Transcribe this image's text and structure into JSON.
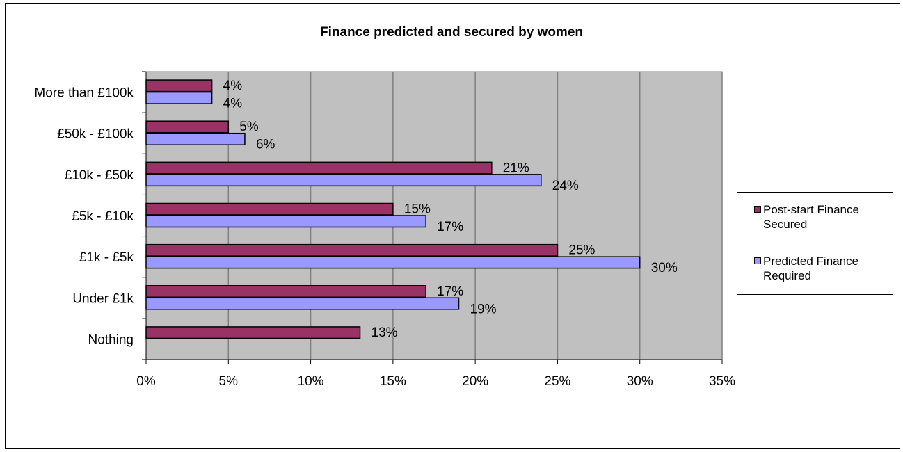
{
  "chart_data": {
    "type": "bar",
    "orientation": "horizontal",
    "title": "Finance predicted and secured by women",
    "categories": [
      "More than £100k",
      "£50k - £100k",
      "£10k - £50k",
      "£5k - £10k",
      "£1k - £5k",
      "Under £1k",
      "Nothing"
    ],
    "series": [
      {
        "name": "Post-start Finance Secured",
        "color": "#993366",
        "values": [
          4,
          5,
          21,
          15,
          25,
          17,
          13
        ],
        "labels": [
          "4%",
          "5%",
          "21%",
          "15%",
          "25%",
          "17%",
          "13%"
        ]
      },
      {
        "name": "Predicted  Finance Required",
        "color": "#9999FF",
        "values": [
          4,
          6,
          24,
          17,
          30,
          19,
          null
        ],
        "labels": [
          "4%",
          "6%",
          "24%",
          "17%",
          "30%",
          "19%",
          ""
        ]
      }
    ],
    "xlim": [
      0,
      35
    ],
    "xticks": [
      0,
      5,
      10,
      15,
      20,
      25,
      30,
      35
    ],
    "xtick_labels": [
      "0%",
      "5%",
      "10%",
      "15%",
      "20%",
      "25%",
      "30%",
      "35%"
    ],
    "plot_background": "#C0C0C0",
    "grid": "vertical",
    "legend_position": "right",
    "xlabel": "",
    "ylabel": ""
  }
}
